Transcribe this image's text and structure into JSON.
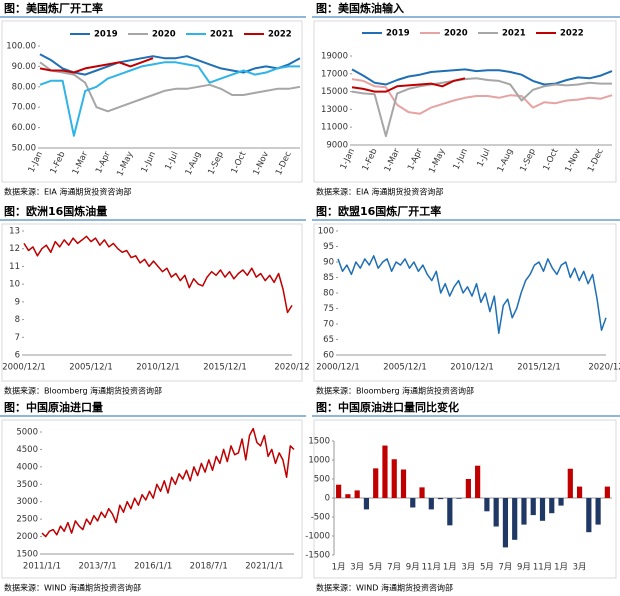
{
  "chart_data": [
    {
      "type": "line",
      "title": "图：美国炼厂开工率",
      "source": "数据来源：EIA    海通期货投资咨询部",
      "categories": [
        "1-Jan",
        null,
        "1-Feb",
        null,
        "1-Mar",
        null,
        "1-Apr",
        null,
        "1-May",
        null,
        "1-Jun",
        null,
        "1-Jul",
        null,
        "1-Aug",
        null,
        "1-Sep",
        null,
        "1-Oct",
        null,
        "1-Nov",
        null,
        "1-Dec",
        null
      ],
      "ylim": [
        50,
        100
      ],
      "yticks": [
        {
          "value": 50,
          "label": "50.00"
        },
        {
          "value": 60,
          "label": "60.00"
        },
        {
          "value": 70,
          "label": "70.00"
        },
        {
          "value": 80,
          "label": "80.00"
        },
        {
          "value": 90,
          "label": "90.00"
        },
        {
          "value": 100,
          "label": "100.00"
        }
      ],
      "legend": "top",
      "grid": false,
      "series": [
        {
          "name": "2019",
          "color": "#1f6fb5",
          "values": [
            96,
            93,
            89,
            87,
            86,
            88,
            90,
            92,
            93,
            94,
            95,
            94,
            94,
            95,
            93,
            91,
            89,
            88,
            87,
            89,
            90,
            89,
            91,
            94
          ]
        },
        {
          "name": "2020",
          "color": "#a6a6a6",
          "values": [
            92,
            88,
            87,
            86,
            82,
            70,
            68,
            70,
            72,
            74,
            76,
            78,
            79,
            79,
            80,
            81,
            79,
            76,
            76,
            77,
            78,
            79,
            79,
            80
          ]
        },
        {
          "name": "2021",
          "color": "#2fb4e9",
          "values": [
            81,
            83,
            83,
            56,
            78,
            80,
            84,
            86,
            88,
            90,
            91,
            92,
            92,
            91,
            90,
            82,
            84,
            86,
            88,
            86,
            87,
            89,
            90,
            90
          ]
        },
        {
          "name": "2022",
          "color": "#c00000",
          "values": [
            89,
            88,
            88,
            87,
            89,
            90,
            91,
            92,
            90,
            92,
            94,
            null,
            null,
            null,
            null,
            null,
            null,
            null,
            null,
            null,
            null,
            null,
            null,
            null
          ]
        }
      ]
    },
    {
      "type": "line",
      "title": "图：美国炼油输入",
      "source": "数据来源：EIA    海通期货投资咨询部",
      "categories": [
        "1-Jan",
        null,
        "1-Feb",
        null,
        "1-Mar",
        null,
        "1-Apr",
        null,
        "1-May",
        null,
        "1-Jun",
        null,
        "1-Jul",
        null,
        "1-Aug",
        null,
        "1-Sep",
        null,
        "1-Oct",
        null,
        "1-Nov",
        null,
        "1-Dec",
        null
      ],
      "ylim": [
        9000,
        19000
      ],
      "yticks": [
        9000,
        11000,
        13000,
        15000,
        17000,
        19000
      ],
      "legend": "top",
      "grid": false,
      "series": [
        {
          "name": "2019",
          "color": "#1f6fb5",
          "values": [
            17500,
            16800,
            16000,
            15800,
            16300,
            16700,
            16900,
            17200,
            17300,
            17400,
            17500,
            17300,
            17400,
            17400,
            17200,
            16900,
            16200,
            15800,
            15900,
            16300,
            16600,
            16500,
            16800,
            17300
          ]
        },
        {
          "name": "2020",
          "color": "#e6a3a3",
          "values": [
            16400,
            16200,
            15600,
            15500,
            13500,
            12700,
            12500,
            13200,
            13600,
            14000,
            14300,
            14500,
            14500,
            14300,
            14600,
            14500,
            13200,
            13800,
            13700,
            14000,
            14100,
            14300,
            14200,
            14600
          ]
        },
        {
          "name": "2021",
          "color": "#a6a6a6",
          "values": [
            15000,
            14800,
            14700,
            10000,
            14800,
            15300,
            15600,
            15800,
            16000,
            16200,
            16400,
            16500,
            16300,
            16200,
            15800,
            14000,
            15200,
            15600,
            15800,
            15700,
            15800,
            16000,
            15900,
            15900
          ]
        },
        {
          "name": "2022",
          "color": "#c00000",
          "values": [
            15500,
            15300,
            15000,
            15000,
            15600,
            15700,
            15800,
            15900,
            15600,
            16200,
            16500,
            null,
            null,
            null,
            null,
            null,
            null,
            null,
            null,
            null,
            null,
            null,
            null,
            null
          ]
        }
      ]
    },
    {
      "type": "line",
      "title": "图：欧洲16国炼油量",
      "source": "数据来源：Bloomberg    海通期货投资咨询部",
      "categories": [
        "2000/12/1",
        null,
        null,
        null,
        null,
        null,
        null,
        null,
        null,
        null,
        null,
        null,
        null,
        null,
        null,
        "2005/12/1",
        null,
        null,
        null,
        null,
        null,
        null,
        null,
        null,
        null,
        null,
        null,
        null,
        null,
        null,
        "2010/12/1",
        null,
        null,
        null,
        null,
        null,
        null,
        null,
        null,
        null,
        null,
        null,
        null,
        null,
        null,
        "2015/12/1",
        null,
        null,
        null,
        null,
        null,
        null,
        null,
        null,
        null,
        null,
        null,
        null,
        null,
        null,
        "2020/12"
      ],
      "ylim": [
        6,
        13
      ],
      "yticks": [
        6,
        7,
        8,
        9,
        10,
        11,
        12,
        13
      ],
      "grid": false,
      "series": [
        {
          "color": "#c00000",
          "values": [
            12.3,
            11.9,
            12.1,
            11.6,
            12.0,
            12.2,
            11.8,
            12.4,
            12.1,
            12.5,
            12.2,
            12.6,
            12.3,
            12.5,
            12.7,
            12.4,
            12.6,
            12.2,
            12.5,
            12.1,
            12.3,
            12.0,
            11.8,
            11.9,
            11.5,
            11.6,
            11.2,
            11.4,
            11.0,
            11.3,
            11.0,
            10.7,
            10.9,
            10.4,
            10.6,
            10.2,
            10.5,
            9.8,
            10.3,
            10.0,
            9.9,
            10.4,
            10.7,
            10.5,
            10.8,
            10.4,
            10.7,
            10.3,
            10.6,
            10.8,
            10.5,
            10.9,
            10.4,
            10.6,
            10.2,
            10.5,
            10.1,
            10.6,
            9.7,
            8.4,
            8.8
          ]
        }
      ]
    },
    {
      "type": "line",
      "title": "图：欧盟16国炼厂开工率",
      "source": "数据来源：Bloomberg    海通期货投资咨询部",
      "categories": [
        "2000/12/1",
        null,
        null,
        null,
        null,
        null,
        null,
        null,
        null,
        null,
        null,
        null,
        null,
        null,
        null,
        "2005/12/1",
        null,
        null,
        null,
        null,
        null,
        null,
        null,
        null,
        null,
        null,
        null,
        null,
        null,
        null,
        "2010/12/1",
        null,
        null,
        null,
        null,
        null,
        null,
        null,
        null,
        null,
        null,
        null,
        null,
        null,
        null,
        "2015/12/1",
        null,
        null,
        null,
        null,
        null,
        null,
        null,
        null,
        null,
        null,
        null,
        null,
        null,
        null,
        "2020/12"
      ],
      "ylim": [
        60,
        100
      ],
      "yticks": [
        60,
        65,
        70,
        75,
        80,
        85,
        90,
        95,
        100
      ],
      "grid": false,
      "series": [
        {
          "color": "#1f6fb5",
          "values": [
            91,
            87,
            89,
            86,
            90,
            88,
            91,
            89,
            92,
            88,
            90,
            91,
            87,
            90,
            89,
            91,
            88,
            90,
            87,
            89,
            86,
            84,
            87,
            80,
            83,
            79,
            82,
            84,
            80,
            82,
            79,
            83,
            77,
            80,
            74,
            79,
            67,
            76,
            78,
            72,
            75,
            80,
            84,
            86,
            89,
            90,
            87,
            91,
            88,
            86,
            89,
            90,
            85,
            88,
            84,
            87,
            83,
            86,
            78,
            68,
            72
          ]
        }
      ]
    },
    {
      "type": "line",
      "title": "图：中国原油进口量",
      "source": "数据来源：WIND    海通期货投资咨询部",
      "categories": [
        "2011/1/1",
        null,
        null,
        null,
        null,
        null,
        null,
        null,
        null,
        null,
        null,
        null,
        null,
        null,
        null,
        "2013/7/1",
        null,
        null,
        null,
        null,
        null,
        null,
        null,
        null,
        null,
        null,
        null,
        null,
        null,
        null,
        "2016/1/1",
        null,
        null,
        null,
        null,
        null,
        null,
        null,
        null,
        null,
        null,
        null,
        null,
        null,
        null,
        "2018/7/1",
        null,
        null,
        null,
        null,
        null,
        null,
        null,
        null,
        null,
        null,
        null,
        null,
        null,
        null,
        "2021/1/1",
        null,
        null,
        null,
        null,
        null,
        null,
        null,
        null
      ],
      "ylim": [
        1500,
        5000
      ],
      "yticks": [
        1500,
        2000,
        2500,
        3000,
        3500,
        4000,
        4500,
        5000
      ],
      "grid": false,
      "series": [
        {
          "color": "#c00000",
          "values": [
            2100,
            2000,
            2150,
            2200,
            2050,
            2300,
            2150,
            2400,
            2100,
            2450,
            2300,
            2200,
            2500,
            2350,
            2600,
            2450,
            2700,
            2550,
            2800,
            2650,
            2400,
            2900,
            2700,
            3000,
            2800,
            3100,
            2900,
            3200,
            3050,
            3300,
            3100,
            3500,
            3300,
            3600,
            3250,
            3700,
            3500,
            3800,
            3650,
            3900,
            3600,
            4000,
            3750,
            4100,
            3850,
            4200,
            3900,
            4300,
            4100,
            4500,
            4150,
            4600,
            4350,
            4400,
            4800,
            4200,
            4900,
            5100,
            4700,
            4600,
            4900,
            4300,
            4500,
            4100,
            4400,
            4200,
            3700,
            4600,
            4500
          ]
        }
      ]
    },
    {
      "type": "bar",
      "title": "图：中国原油进口量同比变化",
      "source": "数据来源：WIND    海通期货投资咨询部",
      "categories": [
        "1月",
        null,
        "3月",
        null,
        "5月",
        null,
        "7月",
        null,
        "9月",
        null,
        "11月",
        null,
        "1月",
        null,
        "3月",
        null,
        "5月",
        null,
        "7月",
        null,
        "9月",
        null,
        "11月",
        null,
        "1月",
        null,
        "3月",
        null,
        null,
        null
      ],
      "values": [
        350,
        100,
        200,
        -300,
        780,
        1380,
        1020,
        750,
        -250,
        280,
        -300,
        -30,
        -720,
        -20,
        500,
        850,
        -350,
        -750,
        -1300,
        -1100,
        -700,
        -450,
        -600,
        -400,
        -200,
        770,
        300,
        -900,
        -700,
        300
      ],
      "ylim": [
        -1500,
        1500
      ],
      "yticks": [
        -1500,
        -1000,
        -500,
        0,
        500,
        1000,
        1500
      ],
      "grid": false,
      "positive_color": "#c00000",
      "negative_color": "#1f3864"
    }
  ]
}
